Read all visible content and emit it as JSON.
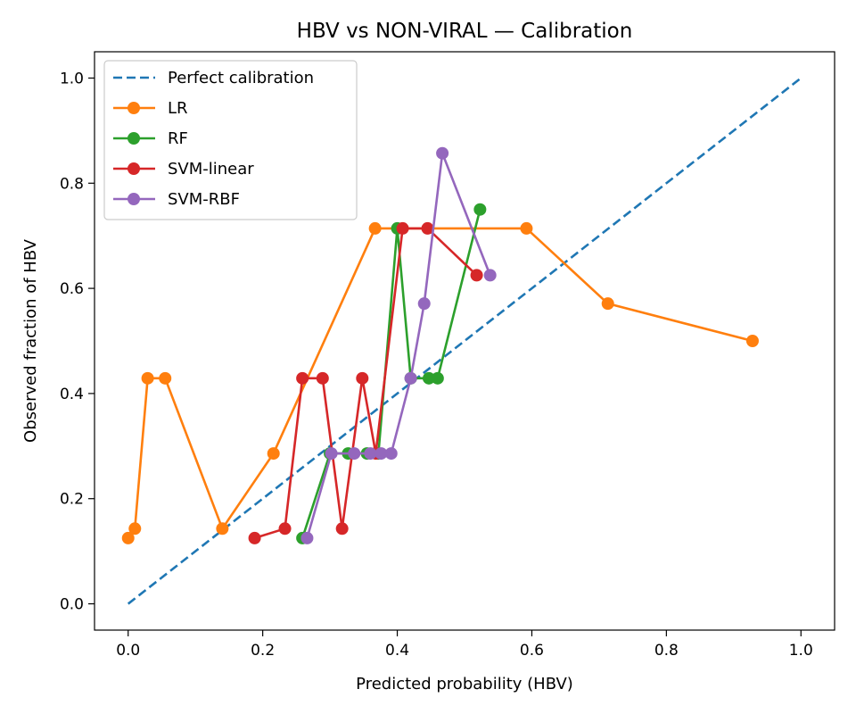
{
  "chart_data": {
    "type": "line",
    "title": "HBV vs NON-VIRAL — Calibration",
    "xlabel": "Predicted probability (HBV)",
    "ylabel": "Observed fraction of HBV",
    "xlim": [
      -0.05,
      1.05
    ],
    "ylim": [
      -0.05,
      1.05
    ],
    "xticks": [
      0.0,
      0.2,
      0.4,
      0.6,
      0.8,
      1.0
    ],
    "yticks": [
      0.0,
      0.2,
      0.4,
      0.6,
      0.8,
      1.0
    ],
    "xtick_labels": [
      "0.0",
      "0.2",
      "0.4",
      "0.6",
      "0.8",
      "1.0"
    ],
    "ytick_labels": [
      "0.0",
      "0.2",
      "0.4",
      "0.6",
      "0.8",
      "1.0"
    ],
    "grid": false,
    "legend_position": "top-left",
    "reference": {
      "name": "Perfect calibration",
      "color": "#1f77b4",
      "style": "dashed",
      "x": [
        0.0,
        1.0
      ],
      "y": [
        0.0,
        1.0
      ]
    },
    "series": [
      {
        "name": "LR",
        "color": "#ff7f0e",
        "x": [
          0.0,
          0.01,
          0.029,
          0.055,
          0.14,
          0.216,
          0.367,
          0.592,
          0.713,
          0.928
        ],
        "y": [
          0.125,
          0.143,
          0.429,
          0.429,
          0.143,
          0.286,
          0.714,
          0.714,
          0.571,
          0.5
        ]
      },
      {
        "name": "RF",
        "color": "#2ca02c",
        "x": [
          0.259,
          0.3,
          0.327,
          0.355,
          0.372,
          0.4,
          0.42,
          0.447,
          0.46,
          0.523
        ],
        "y": [
          0.125,
          0.286,
          0.286,
          0.286,
          0.286,
          0.714,
          0.429,
          0.429,
          0.429,
          0.75
        ]
      },
      {
        "name": "SVM-linear",
        "color": "#d62728",
        "x": [
          0.188,
          0.233,
          0.259,
          0.289,
          0.318,
          0.348,
          0.368,
          0.408,
          0.445,
          0.518
        ],
        "y": [
          0.125,
          0.143,
          0.429,
          0.429,
          0.143,
          0.429,
          0.286,
          0.714,
          0.714,
          0.625
        ]
      },
      {
        "name": "SVM-RBF",
        "color": "#9467bd",
        "x": [
          0.266,
          0.302,
          0.336,
          0.36,
          0.376,
          0.391,
          0.42,
          0.44,
          0.467,
          0.538
        ],
        "y": [
          0.125,
          0.286,
          0.286,
          0.286,
          0.286,
          0.286,
          0.429,
          0.571,
          0.857,
          0.625
        ]
      }
    ]
  }
}
